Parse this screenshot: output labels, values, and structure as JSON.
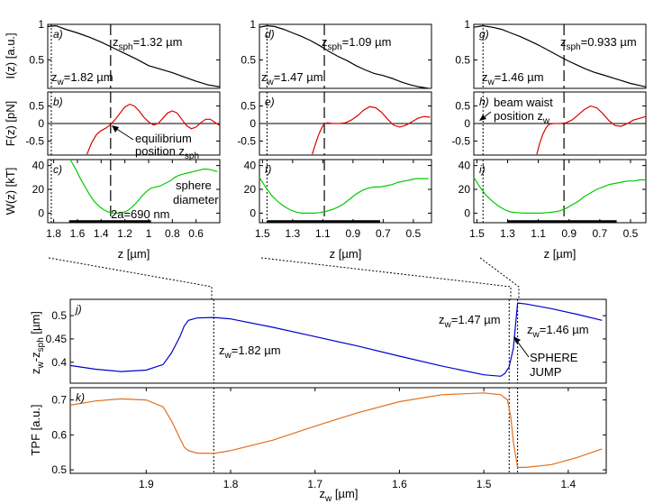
{
  "chart_data": [
    {
      "type": "line",
      "panel_label": "a)",
      "ylabel": "I(z) [a.u.]",
      "xlim": [
        1.85,
        0.4
      ],
      "ylim": [
        0.1,
        1.0
      ],
      "yticks": [
        "0.5",
        "1"
      ],
      "series": [
        {
          "color": "#000000",
          "x": [
            1.85,
            1.78,
            1.7,
            1.6,
            1.5,
            1.4,
            1.3,
            1.2,
            1.1,
            1.0,
            0.9,
            0.8,
            0.7,
            0.6,
            0.5,
            0.4
          ],
          "y": [
            0.97,
            0.98,
            0.93,
            0.88,
            0.82,
            0.75,
            0.67,
            0.59,
            0.51,
            0.42,
            0.37,
            0.32,
            0.26,
            0.2,
            0.15,
            0.12
          ]
        }
      ],
      "vlines": [
        {
          "x": 1.82,
          "style": "dotted"
        },
        {
          "x": 1.32,
          "style": "dashed"
        }
      ],
      "annotations": [
        {
          "base": "z",
          "sub": "sph",
          "rest": "=1.32 µm"
        },
        {
          "base": "z",
          "sub": "w",
          "rest": "=1.82 µm"
        }
      ]
    },
    {
      "type": "line",
      "panel_label": "b)",
      "ylabel": "F(z) [pN]",
      "xlim": [
        1.85,
        0.4
      ],
      "ylim": [
        -0.9,
        0.9
      ],
      "yticks": [
        "-0.5",
        "0",
        "0.5"
      ],
      "series": [
        {
          "color": "#e00000",
          "x": [
            1.52,
            1.48,
            1.44,
            1.4,
            1.36,
            1.32,
            1.28,
            1.24,
            1.2,
            1.16,
            1.12,
            1.08,
            1.04,
            1.0,
            0.96,
            0.92,
            0.88,
            0.84,
            0.8,
            0.76,
            0.72,
            0.68,
            0.64,
            0.6,
            0.56,
            0.52,
            0.48,
            0.44,
            0.4
          ],
          "y": [
            -0.88,
            -0.55,
            -0.32,
            -0.2,
            -0.13,
            -0.03,
            0.12,
            0.3,
            0.47,
            0.55,
            0.5,
            0.36,
            0.18,
            0.05,
            -0.04,
            0.0,
            0.15,
            0.3,
            0.36,
            0.3,
            0.12,
            -0.06,
            -0.15,
            -0.1,
            0.02,
            0.12,
            0.12,
            0.03,
            -0.06
          ]
        }
      ],
      "hline": 0,
      "vlines": [
        {
          "x": 1.82,
          "style": "dotted"
        },
        {
          "x": 1.32,
          "style": "dashed"
        }
      ],
      "annotations": [
        {
          "text": "equilibrium"
        },
        {
          "base": "position z",
          "sub": "sph",
          "rest": ""
        }
      ]
    },
    {
      "type": "line",
      "panel_label": "c)",
      "ylabel": "W(z) [kT]",
      "xlabel": "z [µm]",
      "xlim": [
        1.85,
        0.4
      ],
      "ylim": [
        -8,
        45
      ],
      "yticks": [
        "0",
        "20",
        "40"
      ],
      "xticks": [
        "1.8",
        "1.6",
        "1.4",
        "1.2",
        "1",
        "0.8",
        "0.6"
      ],
      "series": [
        {
          "color": "#00cc00",
          "x": [
            1.66,
            1.62,
            1.58,
            1.54,
            1.5,
            1.46,
            1.42,
            1.38,
            1.34,
            1.3,
            1.26,
            1.22,
            1.18,
            1.14,
            1.1,
            1.06,
            1.02,
            0.98,
            0.94,
            0.9,
            0.86,
            0.82,
            0.78,
            0.74,
            0.7,
            0.66,
            0.62,
            0.58,
            0.54,
            0.5,
            0.46,
            0.42
          ],
          "y": [
            45,
            38,
            30,
            23,
            16,
            10,
            6,
            3,
            1,
            0,
            0,
            0.5,
            2,
            5,
            9,
            14,
            18,
            21,
            22,
            23,
            25,
            27,
            30,
            32,
            33,
            34,
            35,
            36,
            37,
            37,
            36,
            35
          ]
        }
      ],
      "bar": {
        "from": 1.67,
        "to": 0.98,
        "y": -1
      },
      "vlines": [
        {
          "x": 1.82,
          "style": "dotted"
        },
        {
          "x": 1.32,
          "style": "dashed"
        }
      ],
      "annotations": [
        {
          "text": "sphere"
        },
        {
          "text": "diameter"
        },
        {
          "text": "2a=690 nm"
        }
      ]
    },
    {
      "type": "line",
      "panel_label": "d)",
      "xlim": [
        1.52,
        0.38
      ],
      "ylim": [
        0.1,
        1.0
      ],
      "yticks": [
        "0.5",
        "1"
      ],
      "series": [
        {
          "color": "#000000",
          "x": [
            1.52,
            1.47,
            1.42,
            1.36,
            1.3,
            1.24,
            1.18,
            1.12,
            1.06,
            1.0,
            0.94,
            0.88,
            0.82,
            0.76,
            0.7,
            0.64,
            0.58,
            0.52,
            0.46,
            0.4
          ],
          "y": [
            0.96,
            0.98,
            0.97,
            0.93,
            0.88,
            0.83,
            0.77,
            0.7,
            0.62,
            0.55,
            0.49,
            0.42,
            0.36,
            0.31,
            0.28,
            0.24,
            0.19,
            0.15,
            0.12,
            0.1
          ]
        }
      ],
      "vlines": [
        {
          "x": 1.47,
          "style": "dotted"
        },
        {
          "x": 1.09,
          "style": "dashed"
        }
      ],
      "annotations": [
        {
          "base": "z",
          "sub": "sph",
          "rest": "=1.09 µm"
        },
        {
          "base": "z",
          "sub": "w",
          "rest": "=1.47 µm"
        }
      ]
    },
    {
      "type": "line",
      "panel_label": "e)",
      "xlim": [
        1.52,
        0.38
      ],
      "ylim": [
        -0.9,
        0.9
      ],
      "yticks": [
        "-0.5",
        "0",
        "0.5"
      ],
      "series": [
        {
          "color": "#e00000",
          "x": [
            1.17,
            1.15,
            1.13,
            1.11,
            1.09,
            1.07,
            1.03,
            0.99,
            0.95,
            0.91,
            0.87,
            0.83,
            0.79,
            0.75,
            0.71,
            0.67,
            0.63,
            0.59,
            0.55,
            0.51,
            0.47,
            0.43,
            0.39
          ],
          "y": [
            -0.88,
            -0.6,
            -0.35,
            -0.15,
            0.0,
            0.02,
            0.0,
            0.0,
            0.02,
            0.1,
            0.22,
            0.38,
            0.48,
            0.45,
            0.32,
            0.12,
            -0.05,
            -0.1,
            -0.05,
            0.05,
            0.15,
            0.2,
            0.18
          ]
        }
      ],
      "hline": 0,
      "vlines": [
        {
          "x": 1.47,
          "style": "dotted"
        },
        {
          "x": 1.09,
          "style": "dashed"
        }
      ],
      "annotations": []
    },
    {
      "type": "line",
      "panel_label": "f)",
      "xlim": [
        1.52,
        0.38
      ],
      "ylim": [
        -8,
        45
      ],
      "yticks": [
        "0",
        "20",
        "40"
      ],
      "xticks": [
        "1.5",
        "1.3",
        "1.1",
        "0.9",
        "0.7",
        "0.5"
      ],
      "xlabel": "z [µm]",
      "series": [
        {
          "color": "#00cc00",
          "x": [
            1.52,
            1.48,
            1.44,
            1.4,
            1.36,
            1.32,
            1.28,
            1.24,
            1.2,
            1.16,
            1.12,
            1.08,
            1.04,
            1.0,
            0.96,
            0.92,
            0.88,
            0.84,
            0.8,
            0.76,
            0.72,
            0.68,
            0.64,
            0.6,
            0.56,
            0.52,
            0.48,
            0.44,
            0.4
          ],
          "y": [
            30,
            22,
            15,
            10,
            6,
            3,
            1,
            0,
            0,
            0,
            0.5,
            1.5,
            3,
            5,
            8,
            12,
            16,
            19,
            21,
            22,
            22,
            23,
            24,
            26,
            27,
            28,
            29,
            29,
            29
          ]
        }
      ],
      "bar": {
        "from": 1.47,
        "to": 0.72,
        "y": -1
      },
      "vlines": [
        {
          "x": 1.47,
          "style": "dotted"
        },
        {
          "x": 1.09,
          "style": "dashed"
        }
      ],
      "annotations": []
    },
    {
      "type": "line",
      "panel_label": "g)",
      "xlim": [
        1.52,
        0.4
      ],
      "ylim": [
        0.1,
        1.0
      ],
      "yticks": [
        "0.5",
        "1"
      ],
      "series": [
        {
          "color": "#000000",
          "x": [
            1.52,
            1.46,
            1.4,
            1.34,
            1.28,
            1.22,
            1.16,
            1.1,
            1.04,
            0.98,
            0.92,
            0.86,
            0.8,
            0.74,
            0.68,
            0.62,
            0.56,
            0.5,
            0.44,
            0.4
          ],
          "y": [
            0.96,
            0.98,
            0.96,
            0.93,
            0.88,
            0.83,
            0.77,
            0.71,
            0.64,
            0.57,
            0.5,
            0.44,
            0.38,
            0.33,
            0.29,
            0.25,
            0.21,
            0.17,
            0.14,
            0.12
          ]
        }
      ],
      "vlines": [
        {
          "x": 1.46,
          "style": "dotted"
        },
        {
          "x": 0.933,
          "style": "dashed"
        }
      ],
      "annotations": [
        {
          "base": "z",
          "sub": "sph",
          "rest": "=0.933 µm"
        },
        {
          "base": "z",
          "sub": "w",
          "rest": "=1.46 µm"
        }
      ]
    },
    {
      "type": "line",
      "panel_label": "h)",
      "xlim": [
        1.52,
        0.4
      ],
      "ylim": [
        -0.9,
        0.9
      ],
      "yticks": [
        "-0.5",
        "0",
        "0.5"
      ],
      "series": [
        {
          "color": "#e00000",
          "x": [
            1.11,
            1.09,
            1.07,
            1.05,
            1.03,
            1.0,
            0.96,
            0.92,
            0.88,
            0.84,
            0.8,
            0.76,
            0.72,
            0.68,
            0.64,
            0.6,
            0.56,
            0.52,
            0.48,
            0.44,
            0.4
          ],
          "y": [
            -0.88,
            -0.55,
            -0.3,
            -0.12,
            -0.02,
            0.0,
            0.0,
            0.02,
            0.1,
            0.25,
            0.4,
            0.5,
            0.45,
            0.28,
            0.08,
            -0.06,
            -0.08,
            0.0,
            0.1,
            0.15,
            0.2
          ]
        }
      ],
      "hline": 0,
      "vlines": [
        {
          "x": 1.46,
          "style": "dotted"
        },
        {
          "x": 0.933,
          "style": "dashed"
        }
      ],
      "annotations": [
        {
          "text": "beam waist"
        },
        {
          "base": "position z",
          "sub": "w",
          "rest": ""
        }
      ]
    },
    {
      "type": "line",
      "panel_label": "i)",
      "xlim": [
        1.52,
        0.4
      ],
      "ylim": [
        -8,
        45
      ],
      "yticks": [
        "0",
        "20",
        "40"
      ],
      "xticks": [
        "1.5",
        "1.3",
        "1.1",
        "0.9",
        "0.7",
        "0.5"
      ],
      "xlabel": "z [µm]",
      "series": [
        {
          "color": "#00cc00",
          "x": [
            1.52,
            1.48,
            1.44,
            1.4,
            1.36,
            1.32,
            1.28,
            1.24,
            1.2,
            1.16,
            1.12,
            1.08,
            1.04,
            1.0,
            0.96,
            0.92,
            0.88,
            0.84,
            0.8,
            0.76,
            0.72,
            0.68,
            0.64,
            0.6,
            0.56,
            0.52,
            0.48,
            0.44,
            0.4
          ],
          "y": [
            30,
            22,
            15,
            10,
            6,
            3,
            1,
            0.5,
            0,
            0,
            0,
            0,
            0.5,
            1,
            2,
            4,
            7,
            10,
            14,
            17,
            20,
            22,
            24,
            25,
            26,
            27,
            27,
            28,
            28
          ]
        }
      ],
      "bar": {
        "from": 1.3,
        "to": 0.59,
        "y": -1
      },
      "vlines": [
        {
          "x": 1.46,
          "style": "dotted"
        },
        {
          "x": 0.933,
          "style": "dashed"
        }
      ],
      "annotations": []
    },
    {
      "type": "line",
      "panel_label": "j)",
      "ylabel": "z_w - z_sph [µm]",
      "xlim": [
        1.99,
        1.355
      ],
      "ylim": [
        0.355,
        0.535
      ],
      "yticks": [
        "0.4",
        "0.45",
        "0.5"
      ],
      "series": [
        {
          "color": "#0000cc",
          "x": [
            1.99,
            1.96,
            1.93,
            1.9,
            1.88,
            1.87,
            1.86,
            1.855,
            1.85,
            1.84,
            1.82,
            1.8,
            1.75,
            1.7,
            1.65,
            1.6,
            1.55,
            1.5,
            1.48,
            1.475,
            1.47,
            1.465,
            1.46,
            1.45,
            1.42,
            1.39,
            1.36
          ],
          "y": [
            0.393,
            0.385,
            0.38,
            0.383,
            0.395,
            0.42,
            0.455,
            0.478,
            0.49,
            0.495,
            0.496,
            0.493,
            0.475,
            0.455,
            0.435,
            0.413,
            0.392,
            0.373,
            0.37,
            0.376,
            0.39,
            0.43,
            0.527,
            0.525,
            0.515,
            0.503,
            0.49
          ]
        }
      ],
      "vlines": [
        {
          "x": 1.82,
          "style": "dotted"
        },
        {
          "x": 1.47,
          "style": "dotted"
        },
        {
          "x": 1.46,
          "style": "dotted"
        }
      ],
      "annotations": [
        {
          "base": "z",
          "sub": "w",
          "rest": "=1.82 µm"
        },
        {
          "base": "z",
          "sub": "w",
          "rest": "=1.47 µm"
        },
        {
          "base": "z",
          "sub": "w",
          "rest": "=1.46 µm"
        },
        {
          "text": "SPHERE"
        },
        {
          "text": "JUMP"
        }
      ]
    },
    {
      "type": "line",
      "panel_label": "k)",
      "ylabel": "TPF [a.u.]",
      "xlabel_base": "z",
      "xlabel_sub": "w",
      "xlabel_rest": " [µm]",
      "xlim": [
        1.99,
        1.355
      ],
      "ylim": [
        0.49,
        0.735
      ],
      "yticks": [
        "0.5",
        "0.6",
        "0.7"
      ],
      "xticks": [
        "1.9",
        "1.8",
        "1.7",
        "1.6",
        "1.5",
        "1.4"
      ],
      "series": [
        {
          "color": "#e07020",
          "x": [
            1.99,
            1.96,
            1.93,
            1.9,
            1.88,
            1.87,
            1.86,
            1.855,
            1.85,
            1.84,
            1.82,
            1.8,
            1.75,
            1.7,
            1.65,
            1.6,
            1.55,
            1.5,
            1.48,
            1.472,
            1.468,
            1.465,
            1.46,
            1.45,
            1.42,
            1.39,
            1.36
          ],
          "y": [
            0.685,
            0.697,
            0.703,
            0.7,
            0.68,
            0.64,
            0.59,
            0.565,
            0.555,
            0.548,
            0.547,
            0.555,
            0.585,
            0.625,
            0.663,
            0.695,
            0.715,
            0.72,
            0.715,
            0.7,
            0.65,
            0.58,
            0.507,
            0.507,
            0.515,
            0.535,
            0.56
          ]
        }
      ],
      "vlines": [
        {
          "x": 1.82,
          "style": "dotted"
        },
        {
          "x": 1.47,
          "style": "dotted"
        },
        {
          "x": 1.46,
          "style": "dotted"
        }
      ],
      "annotations": []
    }
  ]
}
